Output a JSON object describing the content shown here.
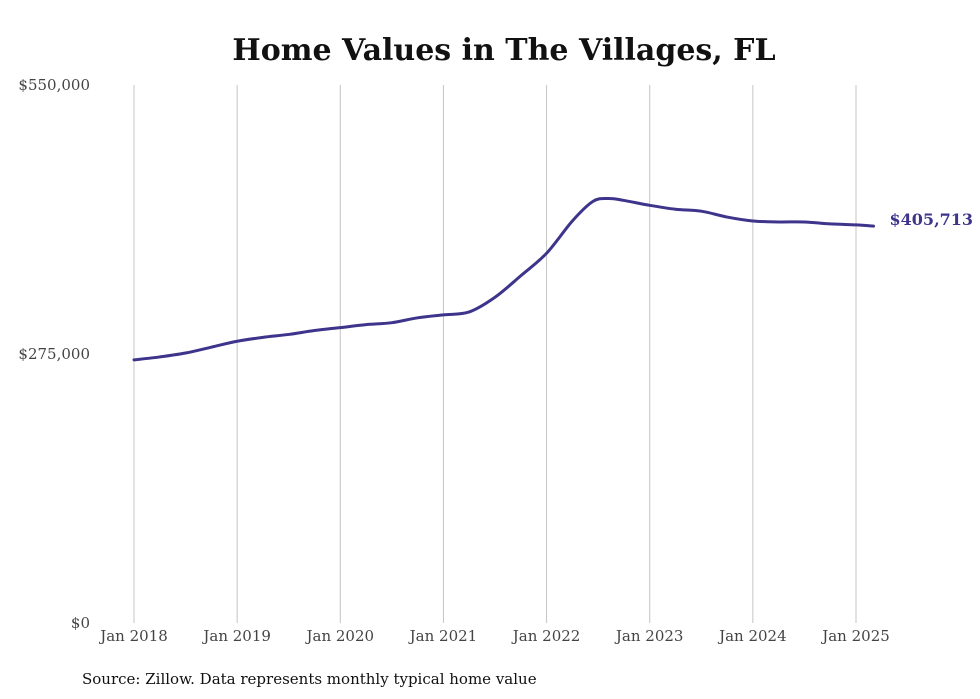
{
  "chart_data": {
    "type": "line",
    "title": "Home Values in The Villages, FL",
    "source": "Source: Zillow. Data represents monthly typical home value",
    "xlabel": "",
    "ylabel": "",
    "ylim": [
      0,
      550000
    ],
    "y_ticks": [
      {
        "value": 0,
        "label": "$0"
      },
      {
        "value": 275000,
        "label": "$275,000"
      },
      {
        "value": 550000,
        "label": "$550,000"
      }
    ],
    "x_ticks": [
      {
        "value": 2018,
        "label": "Jan 2018"
      },
      {
        "value": 2019,
        "label": "Jan 2019"
      },
      {
        "value": 2020,
        "label": "Jan 2020"
      },
      {
        "value": 2021,
        "label": "Jan 2021"
      },
      {
        "value": 2022,
        "label": "Jan 2022"
      },
      {
        "value": 2023,
        "label": "Jan 2023"
      },
      {
        "value": 2024,
        "label": "Jan 2024"
      },
      {
        "value": 2025,
        "label": "Jan 2025"
      }
    ],
    "xlim": [
      2018,
      2025.17
    ],
    "grid": "vertical",
    "series": [
      {
        "color": "#3d348b",
        "end_label": "$405,713",
        "points": [
          {
            "x": 2018.0,
            "y": 269000
          },
          {
            "x": 2018.25,
            "y": 272000
          },
          {
            "x": 2018.5,
            "y": 276000
          },
          {
            "x": 2018.75,
            "y": 282000
          },
          {
            "x": 2019.0,
            "y": 288000
          },
          {
            "x": 2019.25,
            "y": 292000
          },
          {
            "x": 2019.5,
            "y": 295000
          },
          {
            "x": 2019.75,
            "y": 299000
          },
          {
            "x": 2020.0,
            "y": 302000
          },
          {
            "x": 2020.25,
            "y": 305000
          },
          {
            "x": 2020.5,
            "y": 307000
          },
          {
            "x": 2020.75,
            "y": 312000
          },
          {
            "x": 2021.0,
            "y": 315000
          },
          {
            "x": 2021.25,
            "y": 318000
          },
          {
            "x": 2021.5,
            "y": 333000
          },
          {
            "x": 2021.75,
            "y": 355000
          },
          {
            "x": 2022.0,
            "y": 378000
          },
          {
            "x": 2022.25,
            "y": 411000
          },
          {
            "x": 2022.45,
            "y": 431000
          },
          {
            "x": 2022.6,
            "y": 434000
          },
          {
            "x": 2022.75,
            "y": 432000
          },
          {
            "x": 2023.0,
            "y": 427000
          },
          {
            "x": 2023.25,
            "y": 423000
          },
          {
            "x": 2023.5,
            "y": 421000
          },
          {
            "x": 2023.75,
            "y": 415000
          },
          {
            "x": 2024.0,
            "y": 411000
          },
          {
            "x": 2024.25,
            "y": 410000
          },
          {
            "x": 2024.5,
            "y": 410000
          },
          {
            "x": 2024.75,
            "y": 408000
          },
          {
            "x": 2025.0,
            "y": 407000
          },
          {
            "x": 2025.17,
            "y": 405713
          }
        ]
      }
    ]
  }
}
